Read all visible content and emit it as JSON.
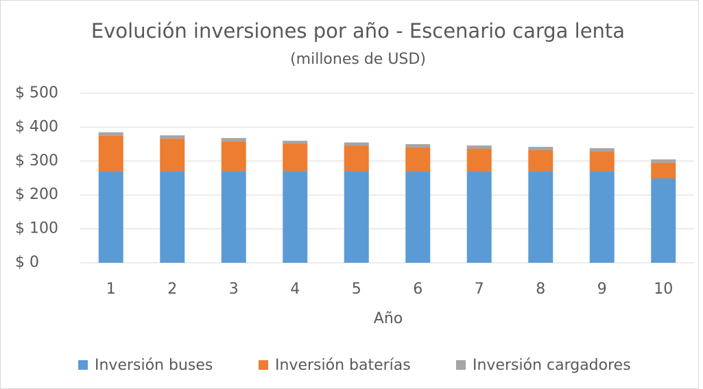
{
  "chart_data": {
    "type": "stacked_bar",
    "title": "Evolución inversiones por año - Escenario carga lenta",
    "subtitle": "(millones de USD)",
    "x_label": "Año",
    "categories": [
      "1",
      "2",
      "3",
      "4",
      "5",
      "6",
      "7",
      "8",
      "9",
      "10"
    ],
    "series": [
      {
        "name": "Inversión buses",
        "color": "#5b9bd5",
        "values": [
          271,
          271,
          271,
          271,
          271,
          271,
          271,
          271,
          271,
          249
        ]
      },
      {
        "name": "Inversión baterías",
        "color": "#ed7d31",
        "values": [
          104,
          95,
          87,
          81,
          75,
          69,
          65,
          61,
          57,
          46
        ]
      },
      {
        "name": "Inversión cargadores",
        "color": "#a5a5a5",
        "values": [
          10,
          10,
          10,
          8,
          9,
          10,
          10,
          10,
          10,
          10
        ]
      }
    ],
    "ylim": [
      0,
      500
    ],
    "yticks": [
      {
        "value": 0,
        "label": "$ 0"
      },
      {
        "value": 100,
        "label": "$ 100"
      },
      {
        "value": 200,
        "label": "$ 200"
      },
      {
        "value": 300,
        "label": "$ 300"
      },
      {
        "value": 400,
        "label": "$ 400"
      },
      {
        "value": 500,
        "label": "$ 500"
      }
    ],
    "grid": true,
    "legend": "bottom"
  }
}
